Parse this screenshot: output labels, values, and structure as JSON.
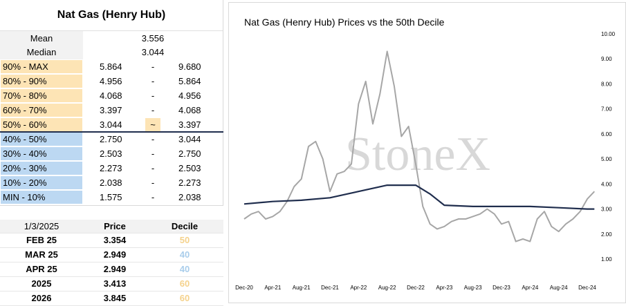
{
  "decile_table": {
    "title": "Nat Gas (Henry Hub)",
    "stats": [
      {
        "label": "Mean",
        "value": "3.556"
      },
      {
        "label": "Median",
        "value": "3.044"
      }
    ],
    "bands": [
      {
        "label": "90% - MAX",
        "low": "5.864",
        "sep": "-",
        "high": "9.680",
        "zone": "upper"
      },
      {
        "label": "80% - 90%",
        "low": "4.956",
        "sep": "-",
        "high": "5.864",
        "zone": "upper"
      },
      {
        "label": "70% - 80%",
        "low": "4.068",
        "sep": "-",
        "high": "4.956",
        "zone": "upper"
      },
      {
        "label": "60% - 70%",
        "low": "3.397",
        "sep": "-",
        "high": "4.068",
        "zone": "upper"
      },
      {
        "label": "50% - 60%",
        "low": "3.044",
        "sep": "~",
        "high": "3.397",
        "zone": "upper"
      },
      {
        "label": "40% - 50%",
        "low": "2.750",
        "sep": "-",
        "high": "3.044",
        "zone": "lower"
      },
      {
        "label": "30% - 40%",
        "low": "2.503",
        "sep": "-",
        "high": "2.750",
        "zone": "lower"
      },
      {
        "label": "20% - 30%",
        "low": "2.273",
        "sep": "-",
        "high": "2.503",
        "zone": "lower"
      },
      {
        "label": "10% - 20%",
        "low": "2.038",
        "sep": "-",
        "high": "2.273",
        "zone": "lower"
      },
      {
        "label": "MIN - 10%",
        "low": "1.575",
        "sep": "-",
        "high": "2.038",
        "zone": "lower"
      }
    ],
    "colors": {
      "upper": "#fde4b5",
      "lower": "#bcd8f2",
      "median_line": "#1f2d4d"
    }
  },
  "price_table": {
    "headers": [
      "1/3/2025",
      "Price",
      "Decile"
    ],
    "rows": [
      {
        "contract": "FEB 25",
        "price": "3.354",
        "decile": "50",
        "decile_color": "#f5d28c"
      },
      {
        "contract": "MAR 25",
        "price": "2.949",
        "decile": "40",
        "decile_color": "#a9cdeb"
      },
      {
        "contract": "APR 25",
        "price": "2.949",
        "decile": "40",
        "decile_color": "#a9cdeb"
      },
      {
        "contract": "2025",
        "price": "3.413",
        "decile": "60",
        "decile_color": "#f5d28c"
      },
      {
        "contract": "2026",
        "price": "3.845",
        "decile": "60",
        "decile_color": "#f5d28c"
      }
    ]
  },
  "chart_data": {
    "type": "line",
    "title": "Nat Gas (Henry Hub) Prices vs the 50th Decile",
    "watermark": "StoneX",
    "x_tick_labels": [
      "Dec-20",
      "Apr-21",
      "Aug-21",
      "Dec-21",
      "Apr-22",
      "Aug-22",
      "Dec-22",
      "Apr-23",
      "Aug-23",
      "Dec-23",
      "Apr-24",
      "Aug-24",
      "Dec-24"
    ],
    "y_tick_labels": [
      "1.00",
      "2.00",
      "3.00",
      "4.00",
      "5.00",
      "6.00",
      "7.00",
      "8.00",
      "9.00",
      "10.00"
    ],
    "ylim": [
      1,
      10
    ],
    "y_axis_side": "right",
    "grid": false,
    "series": [
      {
        "color": "#a6a6a6",
        "x": [
          "Dec-20",
          "Jan-21",
          "Feb-21",
          "Mar-21",
          "Apr-21",
          "May-21",
          "Jun-21",
          "Jul-21",
          "Aug-21",
          "Sep-21",
          "Oct-21",
          "Nov-21",
          "Dec-21",
          "Jan-22",
          "Feb-22",
          "Mar-22",
          "Apr-22",
          "May-22",
          "Jun-22",
          "Jul-22",
          "Aug-22",
          "Sep-22",
          "Oct-22",
          "Nov-22",
          "Dec-22",
          "Jan-23",
          "Feb-23",
          "Mar-23",
          "Apr-23",
          "May-23",
          "Jun-23",
          "Jul-23",
          "Aug-23",
          "Sep-23",
          "Oct-23",
          "Nov-23",
          "Dec-23",
          "Jan-24",
          "Feb-24",
          "Mar-24",
          "Apr-24",
          "May-24",
          "Jun-24",
          "Jul-24",
          "Aug-24",
          "Sep-24",
          "Oct-24",
          "Nov-24",
          "Dec-24",
          "Jan-25"
        ],
        "values": [
          2.6,
          2.8,
          2.9,
          2.6,
          2.7,
          2.9,
          3.3,
          3.9,
          4.2,
          5.5,
          5.7,
          5.0,
          3.7,
          4.4,
          4.5,
          4.8,
          7.2,
          8.1,
          6.4,
          7.6,
          9.3,
          7.9,
          5.9,
          6.3,
          4.8,
          3.1,
          2.4,
          2.2,
          2.3,
          2.5,
          2.6,
          2.6,
          2.7,
          2.8,
          3.0,
          2.8,
          2.4,
          2.5,
          1.7,
          1.8,
          1.7,
          2.6,
          2.9,
          2.3,
          2.1,
          2.4,
          2.6,
          2.9,
          3.4,
          3.7
        ]
      },
      {
        "color": "#1f2d4d",
        "x": [
          "Dec-20",
          "Apr-21",
          "Aug-21",
          "Dec-21",
          "Apr-22",
          "Aug-22",
          "Dec-22",
          "Feb-23",
          "Apr-23",
          "Aug-23",
          "Dec-23",
          "Apr-24",
          "Aug-24",
          "Dec-24",
          "Jan-25"
        ],
        "values": [
          3.2,
          3.3,
          3.35,
          3.45,
          3.7,
          3.95,
          3.95,
          3.6,
          3.15,
          3.1,
          3.1,
          3.1,
          3.05,
          3.0,
          3.0
        ]
      }
    ]
  }
}
